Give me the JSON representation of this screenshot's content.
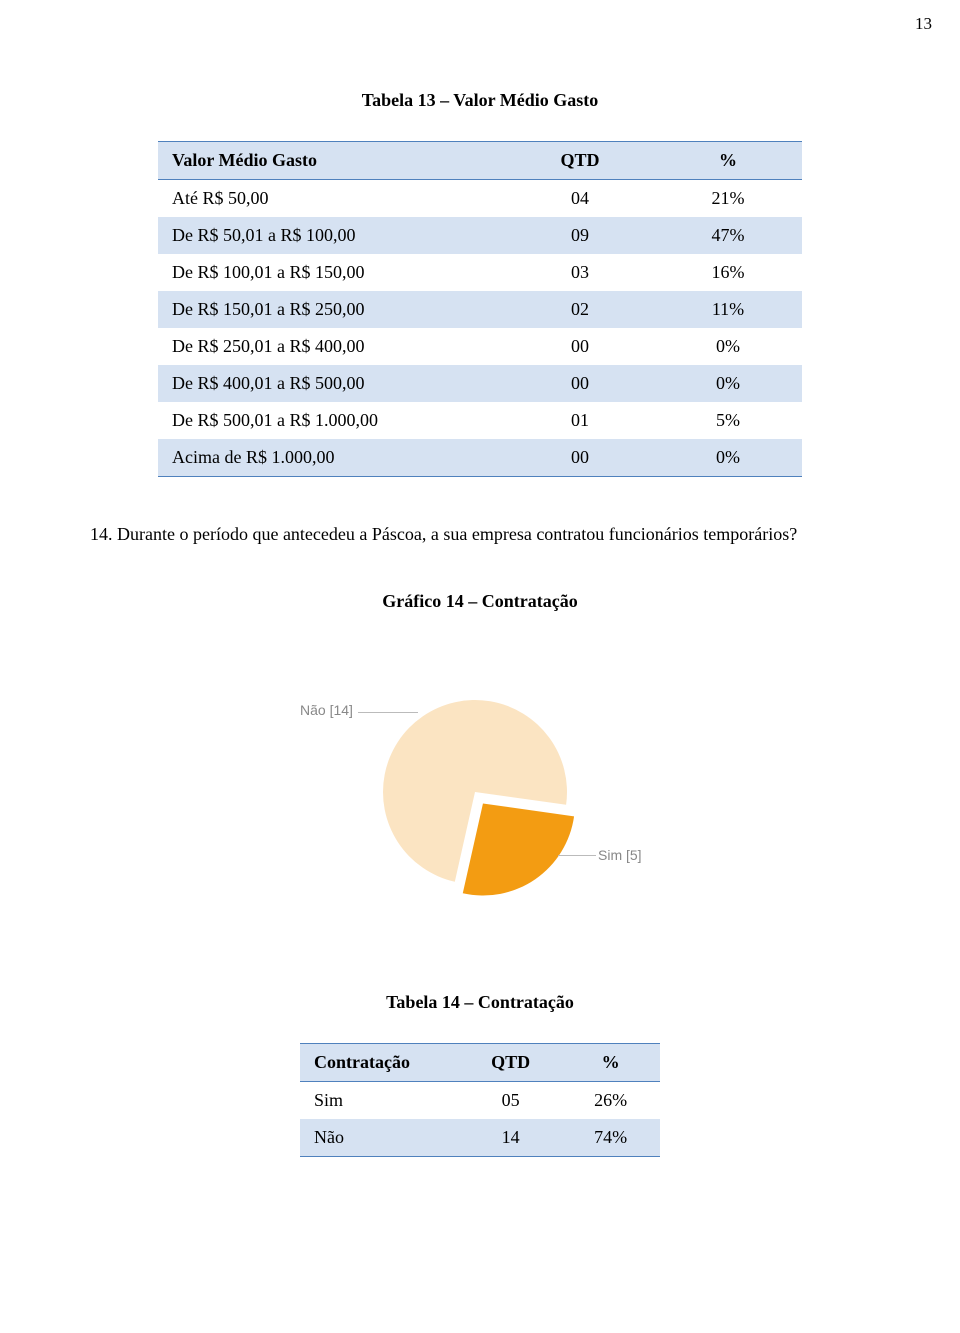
{
  "page_number": "13",
  "table13": {
    "title": "Tabela 13 – Valor Médio Gasto",
    "header_band_color": "#d6e2f2",
    "alt_row_color": "#d6e2f2",
    "border_color": "#4f81bd",
    "columns": [
      "Valor Médio Gasto",
      "QTD",
      "%"
    ],
    "col_widths": [
      "320px",
      "120px",
      "120px"
    ],
    "rows": [
      [
        "Até R$ 50,00",
        "04",
        "21%"
      ],
      [
        "De R$ 50,01 a R$ 100,00",
        "09",
        "47%"
      ],
      [
        "De R$ 100,01 a R$ 150,00",
        "03",
        "16%"
      ],
      [
        "De R$ 150,01 a R$ 250,00",
        "02",
        "11%"
      ],
      [
        "De R$ 250,01 a R$ 400,00",
        "00",
        "0%"
      ],
      [
        "De R$ 400,01 a R$ 500,00",
        "00",
        "0%"
      ],
      [
        "De R$ 500,01 a R$ 1.000,00",
        "01",
        "5%"
      ],
      [
        "Acima de R$ 1.000,00",
        "00",
        "0%"
      ]
    ]
  },
  "question14": {
    "number": "14.",
    "text": "Durante o período que antecedeu a Páscoa, a sua empresa contratou funcionários temporários?"
  },
  "chart14": {
    "title": "Gráfico 14 – Contratação",
    "type": "pie",
    "label_font": "Arial",
    "label_color": "#888888",
    "leader_color": "#bbbbbb",
    "slices": [
      {
        "name": "Não",
        "count": 14,
        "label": "Não [14]",
        "color": "#fbe4c2",
        "fraction": 0.737
      },
      {
        "name": "Sim",
        "count": 5,
        "label": "Sim [5]",
        "color": "#f39c12",
        "fraction": 0.263,
        "pulled_out": true
      }
    ],
    "radius": 92,
    "background": "#ffffff"
  },
  "table14": {
    "title": "Tabela 14 – Contratação",
    "header_band_color": "#d6e2f2",
    "alt_row_color": "#d6e2f2",
    "border_color": "#4f81bd",
    "columns": [
      "Contratação",
      "QTD",
      "%"
    ],
    "col_widths": [
      "160px",
      "100px",
      "100px"
    ],
    "rows": [
      [
        "Sim",
        "05",
        "26%"
      ],
      [
        "Não",
        "14",
        "74%"
      ]
    ]
  }
}
